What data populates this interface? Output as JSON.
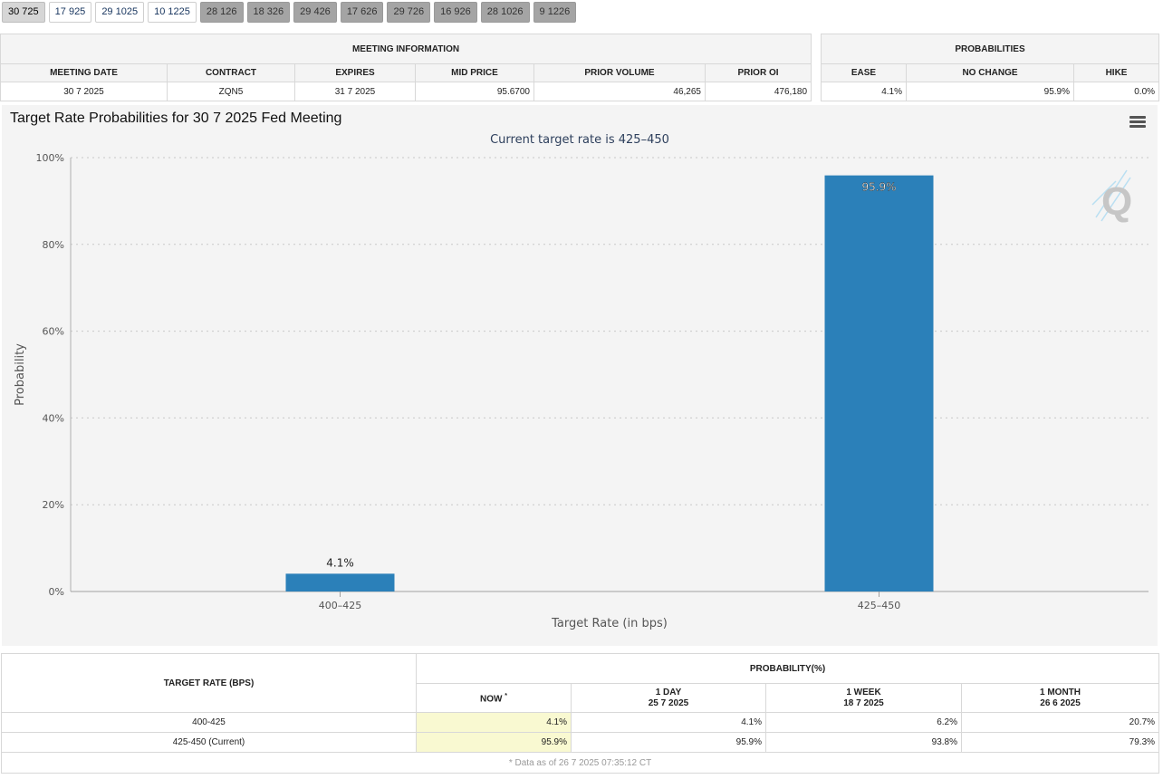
{
  "tabs": [
    {
      "label": "30 725",
      "state": "active"
    },
    {
      "label": "17 925",
      "state": "normal"
    },
    {
      "label": "29 1025",
      "state": "normal"
    },
    {
      "label": "10 1225",
      "state": "normal"
    },
    {
      "label": "28 126",
      "state": "future"
    },
    {
      "label": "18 326",
      "state": "future"
    },
    {
      "label": "29 426",
      "state": "future"
    },
    {
      "label": "17 626",
      "state": "future"
    },
    {
      "label": "29 726",
      "state": "future"
    },
    {
      "label": "16 926",
      "state": "future"
    },
    {
      "label": "28 1026",
      "state": "future"
    },
    {
      "label": "9 1226",
      "state": "future"
    }
  ],
  "meeting_info": {
    "title": "MEETING INFORMATION",
    "headers": [
      "MEETING DATE",
      "CONTRACT",
      "EXPIRES",
      "MID PRICE",
      "PRIOR VOLUME",
      "PRIOR OI"
    ],
    "values": [
      "30 7 2025",
      "ZQN5",
      "31 7 2025",
      "95.6700",
      "46,265",
      "476,180"
    ]
  },
  "probabilities": {
    "title": "PROBABILITIES",
    "headers": [
      "EASE",
      "NO CHANGE",
      "HIKE"
    ],
    "values": [
      "4.1%",
      "95.9%",
      "0.0%"
    ]
  },
  "chart_data": {
    "type": "bar",
    "title": "Target Rate Probabilities for 30 7 2025 Fed Meeting",
    "subtitle": "Current target rate is 425–450",
    "xlabel": "Target Rate (in bps)",
    "ylabel": "Probability",
    "categories": [
      "400–425",
      "425–450"
    ],
    "values": [
      4.1,
      95.9
    ],
    "data_labels": [
      "4.1%",
      "95.9%"
    ],
    "ylim": [
      0,
      100
    ],
    "yticks": [
      0,
      20,
      40,
      60,
      80,
      100
    ],
    "ytick_labels": [
      "0%",
      "20%",
      "40%",
      "60%",
      "80%",
      "100%"
    ],
    "grid": true,
    "bar_color": "#2b80b9"
  },
  "prob_table": {
    "rate_header": "TARGET RATE (BPS)",
    "prob_header": "PROBABILITY(%)",
    "now_label": "NOW",
    "now_mark": "*",
    "columns": [
      {
        "label": "1 DAY",
        "date": "25 7 2025"
      },
      {
        "label": "1 WEEK",
        "date": "18 7 2025"
      },
      {
        "label": "1 MONTH",
        "date": "26 6 2025"
      }
    ],
    "rows": [
      {
        "rate": "400-425",
        "now": "4.1%",
        "d1": "4.1%",
        "w1": "6.2%",
        "m1": "20.7%"
      },
      {
        "rate": "425-450 (Current)",
        "now": "95.9%",
        "d1": "95.9%",
        "w1": "93.8%",
        "m1": "79.3%"
      }
    ],
    "note": "* Data as of 26 7 2025 07:35:12 CT"
  }
}
